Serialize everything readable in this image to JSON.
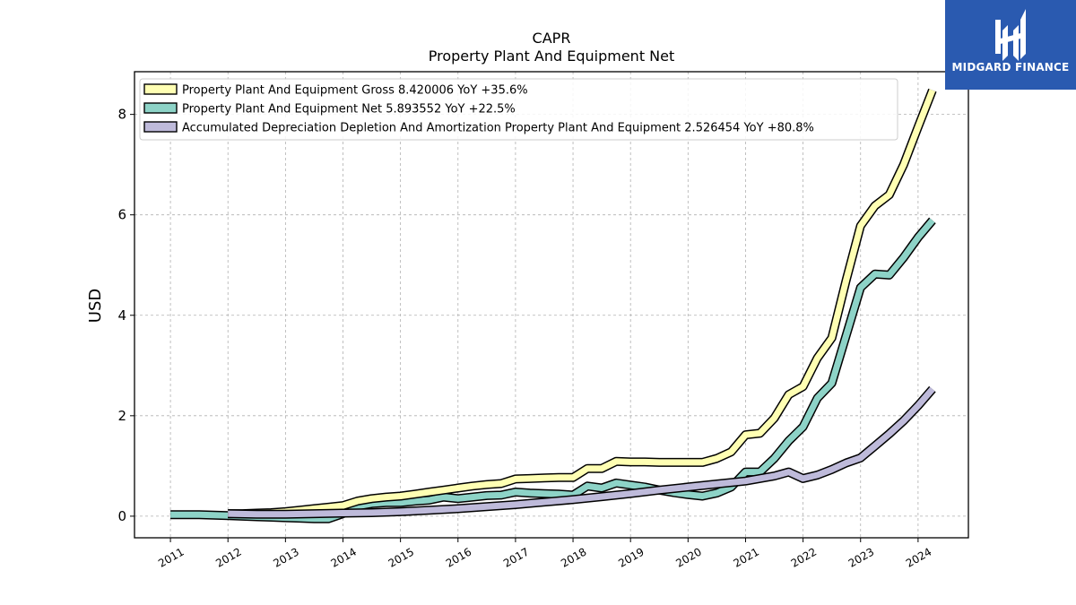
{
  "chart_data": {
    "type": "line",
    "title": "CAPR",
    "subtitle": "Property Plant And Equipment Net",
    "ylabel": "USD",
    "xlabel": "",
    "ylim": [
      -0.43,
      8.85
    ],
    "xlim": [
      2010.375,
      2024.875
    ],
    "yticks": [
      0,
      2,
      4,
      6,
      8
    ],
    "xticks": [
      "2011",
      "2012",
      "2013",
      "2014",
      "2015",
      "2016",
      "2017",
      "2018",
      "2019",
      "2020",
      "2021",
      "2022",
      "2023",
      "2024"
    ],
    "grid": true,
    "legend_position": "upper-left",
    "series": [
      {
        "name": "Property Plant And Equipment Gross",
        "legend": "Property Plant And Equipment Gross  8.420006 YoY +35.6%",
        "color": "#ffffb3",
        "points": [
          [
            2012.0,
            0.05
          ],
          [
            2012.25,
            0.05
          ],
          [
            2012.5,
            0.06
          ],
          [
            2012.75,
            0.07
          ],
          [
            2013.0,
            0.09
          ],
          [
            2013.25,
            0.12
          ],
          [
            2013.5,
            0.15
          ],
          [
            2013.75,
            0.18
          ],
          [
            2014.0,
            0.21
          ],
          [
            2014.25,
            0.3
          ],
          [
            2014.5,
            0.35
          ],
          [
            2014.75,
            0.38
          ],
          [
            2015.0,
            0.4
          ],
          [
            2015.25,
            0.44
          ],
          [
            2015.5,
            0.48
          ],
          [
            2015.75,
            0.52
          ],
          [
            2016.0,
            0.56
          ],
          [
            2016.25,
            0.6
          ],
          [
            2016.5,
            0.63
          ],
          [
            2016.75,
            0.65
          ],
          [
            2017.0,
            0.74
          ],
          [
            2017.25,
            0.75
          ],
          [
            2017.5,
            0.76
          ],
          [
            2017.75,
            0.77
          ],
          [
            2018.0,
            0.77
          ],
          [
            2018.25,
            0.95
          ],
          [
            2018.5,
            0.95
          ],
          [
            2018.75,
            1.09
          ],
          [
            2019.0,
            1.08
          ],
          [
            2019.25,
            1.08
          ],
          [
            2019.5,
            1.07
          ],
          [
            2019.75,
            1.07
          ],
          [
            2020.0,
            1.07
          ],
          [
            2020.25,
            1.07
          ],
          [
            2020.5,
            1.15
          ],
          [
            2020.75,
            1.28
          ],
          [
            2021.0,
            1.62
          ],
          [
            2021.25,
            1.65
          ],
          [
            2021.5,
            1.95
          ],
          [
            2021.75,
            2.42
          ],
          [
            2022.0,
            2.58
          ],
          [
            2022.25,
            3.15
          ],
          [
            2022.5,
            3.55
          ],
          [
            2022.75,
            4.7
          ],
          [
            2023.0,
            5.78
          ],
          [
            2023.25,
            6.18
          ],
          [
            2023.5,
            6.4
          ],
          [
            2023.75,
            7.0
          ],
          [
            2024.0,
            7.75
          ],
          [
            2024.25,
            8.48
          ]
        ]
      },
      {
        "name": "Property Plant And Equipment Net",
        "legend": "Property Plant And Equipment Net  5.893552 YoY +22.5%",
        "color": "#8dd3c7",
        "points": [
          [
            2011.0,
            0.03
          ],
          [
            2011.25,
            0.03
          ],
          [
            2011.5,
            0.03
          ],
          [
            2011.75,
            0.02
          ],
          [
            2012.0,
            0.01
          ],
          [
            2012.25,
            0.0
          ],
          [
            2012.5,
            -0.01
          ],
          [
            2012.75,
            -0.02
          ],
          [
            2013.0,
            -0.03
          ],
          [
            2013.25,
            -0.04
          ],
          [
            2013.5,
            -0.05
          ],
          [
            2013.75,
            -0.05
          ],
          [
            2014.0,
            0.05
          ],
          [
            2014.25,
            0.2
          ],
          [
            2014.5,
            0.25
          ],
          [
            2014.75,
            0.27
          ],
          [
            2015.0,
            0.27
          ],
          [
            2015.25,
            0.3
          ],
          [
            2015.5,
            0.32
          ],
          [
            2015.75,
            0.38
          ],
          [
            2016.0,
            0.35
          ],
          [
            2016.25,
            0.38
          ],
          [
            2016.5,
            0.41
          ],
          [
            2016.75,
            0.42
          ],
          [
            2017.0,
            0.48
          ],
          [
            2017.25,
            0.46
          ],
          [
            2017.5,
            0.45
          ],
          [
            2017.75,
            0.44
          ],
          [
            2018.0,
            0.42
          ],
          [
            2018.25,
            0.6
          ],
          [
            2018.5,
            0.56
          ],
          [
            2018.75,
            0.66
          ],
          [
            2019.0,
            0.62
          ],
          [
            2019.25,
            0.58
          ],
          [
            2019.5,
            0.52
          ],
          [
            2019.75,
            0.47
          ],
          [
            2020.0,
            0.43
          ],
          [
            2020.25,
            0.4
          ],
          [
            2020.5,
            0.46
          ],
          [
            2020.75,
            0.58
          ],
          [
            2021.0,
            0.88
          ],
          [
            2021.25,
            0.88
          ],
          [
            2021.5,
            1.15
          ],
          [
            2021.75,
            1.5
          ],
          [
            2022.0,
            1.78
          ],
          [
            2022.25,
            2.35
          ],
          [
            2022.5,
            2.65
          ],
          [
            2022.75,
            3.6
          ],
          [
            2023.0,
            4.55
          ],
          [
            2023.25,
            4.82
          ],
          [
            2023.5,
            4.8
          ],
          [
            2023.75,
            5.15
          ],
          [
            2024.0,
            5.55
          ],
          [
            2024.25,
            5.89
          ]
        ]
      },
      {
        "name": "Accumulated Depreciation Depletion And Amortization Property Plant And Equipment",
        "legend": "Accumulated Depreciation Depletion And Amortization Property Plant And Equipment  2.526454 YoY +80.8%",
        "color": "#bebada",
        "points": [
          [
            2012.0,
            0.05
          ],
          [
            2012.5,
            0.04
          ],
          [
            2013.0,
            0.04
          ],
          [
            2013.5,
            0.05
          ],
          [
            2014.0,
            0.06
          ],
          [
            2014.5,
            0.07
          ],
          [
            2015.0,
            0.09
          ],
          [
            2015.5,
            0.12
          ],
          [
            2016.0,
            0.15
          ],
          [
            2016.5,
            0.19
          ],
          [
            2017.0,
            0.23
          ],
          [
            2017.5,
            0.28
          ],
          [
            2018.0,
            0.33
          ],
          [
            2018.5,
            0.39
          ],
          [
            2019.0,
            0.45
          ],
          [
            2019.5,
            0.52
          ],
          [
            2020.0,
            0.58
          ],
          [
            2020.5,
            0.64
          ],
          [
            2021.0,
            0.7
          ],
          [
            2021.5,
            0.8
          ],
          [
            2021.75,
            0.88
          ],
          [
            2022.0,
            0.75
          ],
          [
            2022.25,
            0.82
          ],
          [
            2022.5,
            0.93
          ],
          [
            2022.75,
            1.06
          ],
          [
            2023.0,
            1.16
          ],
          [
            2023.25,
            1.4
          ],
          [
            2023.5,
            1.64
          ],
          [
            2023.75,
            1.9
          ],
          [
            2024.0,
            2.2
          ],
          [
            2024.25,
            2.53
          ]
        ]
      }
    ]
  },
  "watermark": {
    "text": "MIDGARD FINANCE",
    "background": "#2a5ab0"
  }
}
